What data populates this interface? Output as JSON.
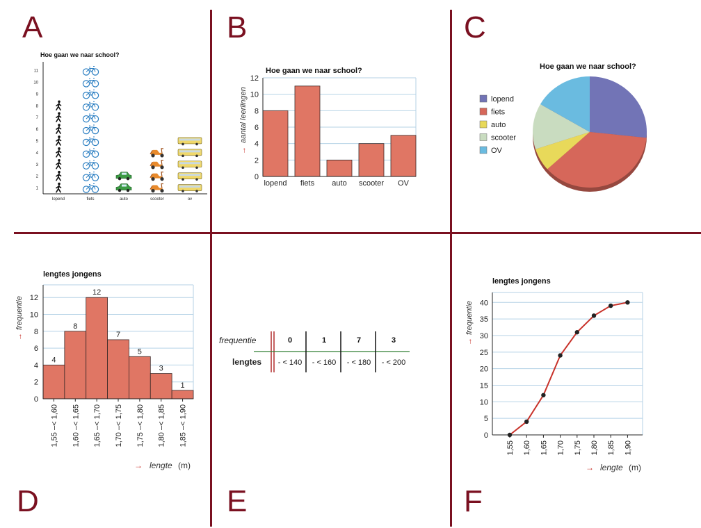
{
  "panels": {
    "A": {
      "letter": "A",
      "chart_data": {
        "type": "bar",
        "title": "Hoe gaan we naar school?",
        "categories": [
          "lopend",
          "fiets",
          "auto",
          "scooter",
          "ov"
        ],
        "values": [
          8,
          11,
          2,
          4,
          5
        ],
        "yticks": [
          1,
          2,
          3,
          4,
          5,
          6,
          7,
          8,
          9,
          10,
          11
        ],
        "icons": [
          "walker-icon",
          "bicycle-icon",
          "car-icon",
          "scooter-icon",
          "bus-icon"
        ]
      }
    },
    "B": {
      "letter": "B",
      "chart_data": {
        "type": "bar",
        "title": "Hoe gaan we naar school?",
        "ylabel": "aantal leerlingen",
        "categories": [
          "lopend",
          "fiets",
          "auto",
          "scooter",
          "OV"
        ],
        "values": [
          8,
          11,
          2,
          4,
          5
        ],
        "ylim": [
          0,
          12
        ],
        "yticks": [
          0,
          2,
          4,
          6,
          8,
          10,
          12
        ],
        "grid": true,
        "color": "#e07664"
      }
    },
    "C": {
      "letter": "C",
      "chart_data": {
        "type": "pie",
        "title": "Hoe gaan we naar school?",
        "categories": [
          "lopend",
          "fiets",
          "auto",
          "scooter",
          "OV"
        ],
        "values": [
          8,
          11,
          2,
          4,
          5
        ],
        "colors": [
          "#7274b6",
          "#d6675a",
          "#e8d95a",
          "#c9dcc0",
          "#6abbe0"
        ],
        "legend": "left"
      }
    },
    "D": {
      "letter": "D",
      "chart_data": {
        "type": "bar",
        "title": "lengtes jongens",
        "xlabel": "lengte",
        "xunit": "(m)",
        "ylabel": "frequentie",
        "categories": [
          "1,55 –< 1,60",
          "1,60 –< 1,65",
          "1,65 –< 1,70",
          "1,70 –< 1,75",
          "1,75 –< 1,80",
          "1,80 –< 1,85",
          "1,85 –< 1,90"
        ],
        "values": [
          4,
          8,
          12,
          7,
          5,
          3,
          1
        ],
        "ylim": [
          0,
          13.5
        ],
        "yticks": [
          0,
          2,
          4,
          6,
          8,
          10,
          12
        ],
        "grid": true,
        "color": "#e07664"
      }
    },
    "E": {
      "letter": "E",
      "chart_data": {
        "type": "table",
        "row_labels": [
          "frequentie",
          "lengtes"
        ],
        "frequencies": [
          "0",
          "1",
          "7",
          "3"
        ],
        "classes": [
          "- < 140",
          "- < 160",
          "- < 180",
          "- < 200"
        ]
      }
    },
    "F": {
      "letter": "F",
      "chart_data": {
        "type": "line",
        "title": "lengtes jongens",
        "xlabel": "lengte",
        "xunit": "(m)",
        "ylabel": "frequentie",
        "x": [
          "1,55",
          "1,60",
          "1,65",
          "1,70",
          "1,75",
          "1,80",
          "1,85",
          "1,90"
        ],
        "values": [
          0,
          4,
          12,
          24,
          31,
          36,
          39,
          40
        ],
        "ylim": [
          0,
          43
        ],
        "yticks": [
          0,
          5,
          10,
          15,
          20,
          25,
          30,
          35,
          40
        ],
        "grid": true,
        "color": "#c8322a"
      }
    }
  }
}
